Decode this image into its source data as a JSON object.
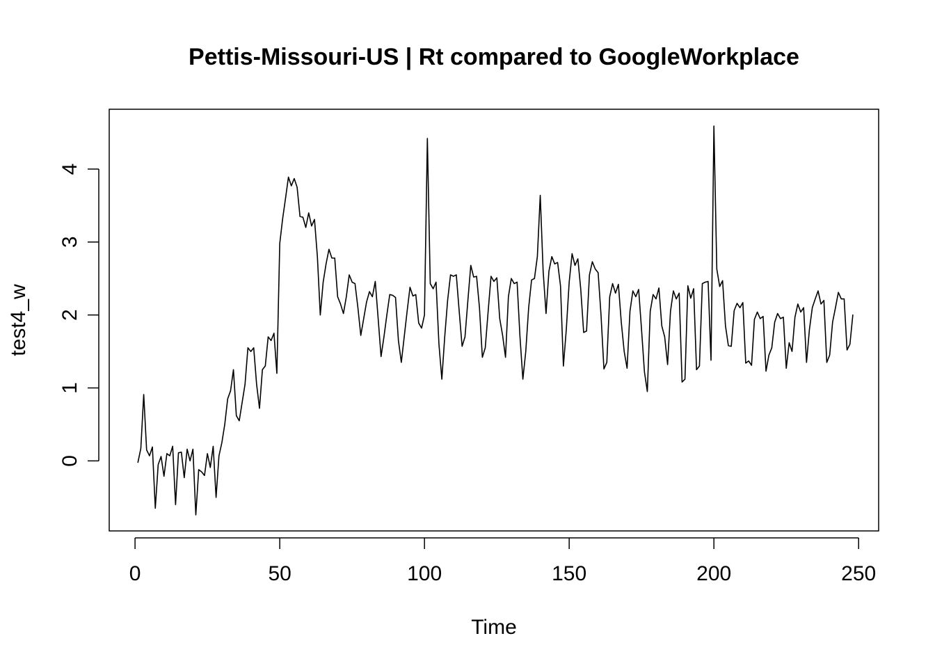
{
  "chart_data": {
    "type": "line",
    "title": "Pettis-Missouri-US | Rt compared to GoogleWorkplace",
    "xlabel": "Time",
    "ylabel": "test4_w",
    "xlim": [
      -8.92,
      256.92
    ],
    "ylim": [
      -0.96,
      4.82
    ],
    "xticks": [
      0,
      50,
      100,
      150,
      200,
      250
    ],
    "yticks": [
      0,
      1,
      2,
      3,
      4
    ],
    "grid": false,
    "legend": "none",
    "series": [
      {
        "color": "#000000",
        "x": [
          1,
          2,
          3,
          4,
          5,
          6,
          7,
          8,
          9,
          10,
          11,
          12,
          13,
          14,
          15,
          16,
          17,
          18,
          19,
          20,
          21,
          22,
          23,
          24,
          25,
          26,
          27,
          28,
          29,
          30,
          31,
          32,
          33,
          34,
          35,
          36,
          37,
          38,
          39,
          40,
          41,
          42,
          43,
          44,
          45,
          46,
          47,
          48,
          49,
          50,
          51,
          52,
          53,
          54,
          55,
          56,
          57,
          58,
          59,
          60,
          61,
          62,
          63,
          64,
          65,
          66,
          67,
          68,
          69,
          70,
          71,
          72,
          73,
          74,
          75,
          76,
          77,
          78,
          79,
          80,
          81,
          82,
          83,
          84,
          85,
          86,
          87,
          88,
          89,
          90,
          91,
          92,
          93,
          94,
          95,
          96,
          97,
          98,
          99,
          100,
          101,
          102,
          103,
          104,
          105,
          106,
          107,
          108,
          109,
          110,
          111,
          112,
          113,
          114,
          115,
          116,
          117,
          118,
          119,
          120,
          121,
          122,
          123,
          124,
          125,
          126,
          127,
          128,
          129,
          130,
          131,
          132,
          133,
          134,
          135,
          136,
          137,
          138,
          139,
          140,
          141,
          142,
          143,
          144,
          145,
          146,
          147,
          148,
          149,
          150,
          151,
          152,
          153,
          154,
          155,
          156,
          157,
          158,
          159,
          160,
          161,
          162,
          163,
          164,
          165,
          166,
          167,
          168,
          169,
          170,
          171,
          172,
          173,
          174,
          175,
          176,
          177,
          178,
          179,
          180,
          181,
          182,
          183,
          184,
          185,
          186,
          187,
          188,
          189,
          190,
          191,
          192,
          193,
          194,
          195,
          196,
          197,
          198,
          199,
          200,
          201,
          202,
          203,
          204,
          205,
          206,
          207,
          208,
          209,
          210,
          211,
          212,
          213,
          214,
          215,
          216,
          217,
          218,
          219,
          220,
          221,
          222,
          223,
          224,
          225,
          226,
          227,
          228,
          229,
          230,
          231,
          232,
          233,
          234,
          235,
          236,
          237,
          238,
          239,
          240,
          241,
          242,
          243,
          244,
          245,
          246,
          247,
          248
        ],
        "y": [
          -0.02,
          0.17,
          0.91,
          0.15,
          0.07,
          0.19,
          -0.65,
          -0.05,
          0.06,
          -0.21,
          0.1,
          0.07,
          0.2,
          -0.6,
          0.11,
          0.12,
          -0.23,
          0.16,
          0.0,
          0.16,
          -0.74,
          -0.12,
          -0.15,
          -0.2,
          0.1,
          -0.09,
          0.2,
          -0.5,
          0.07,
          0.25,
          0.5,
          0.85,
          0.96,
          1.25,
          0.62,
          0.55,
          0.8,
          1.05,
          1.55,
          1.5,
          1.55,
          1.05,
          0.72,
          1.25,
          1.3,
          1.7,
          1.65,
          1.75,
          1.2,
          2.98,
          3.32,
          3.6,
          3.89,
          3.77,
          3.87,
          3.75,
          3.35,
          3.34,
          3.2,
          3.4,
          3.22,
          3.31,
          2.8,
          2.0,
          2.45,
          2.7,
          2.9,
          2.78,
          2.78,
          2.25,
          2.15,
          2.02,
          2.25,
          2.55,
          2.45,
          2.43,
          2.1,
          1.72,
          1.95,
          2.18,
          2.32,
          2.25,
          2.46,
          1.95,
          1.43,
          1.7,
          2.0,
          2.28,
          2.27,
          2.24,
          1.65,
          1.35,
          1.7,
          2.05,
          2.38,
          2.26,
          2.28,
          1.89,
          1.82,
          2.0,
          4.42,
          2.43,
          2.36,
          2.45,
          1.6,
          1.12,
          1.7,
          2.2,
          2.55,
          2.53,
          2.55,
          2.05,
          1.57,
          1.7,
          2.2,
          2.68,
          2.52,
          2.53,
          2.1,
          1.42,
          1.55,
          2.05,
          2.53,
          2.46,
          2.51,
          1.95,
          1.72,
          1.42,
          2.25,
          2.5,
          2.43,
          2.45,
          1.7,
          1.12,
          1.5,
          2.1,
          2.48,
          2.5,
          2.8,
          3.64,
          2.6,
          2.02,
          2.6,
          2.8,
          2.7,
          2.72,
          2.4,
          1.3,
          1.8,
          2.45,
          2.84,
          2.68,
          2.77,
          2.35,
          1.76,
          1.78,
          2.55,
          2.73,
          2.63,
          2.58,
          2.0,
          1.26,
          1.35,
          2.25,
          2.43,
          2.3,
          2.42,
          1.9,
          1.5,
          1.27,
          2.05,
          2.33,
          2.25,
          2.35,
          1.8,
          1.22,
          0.95,
          2.05,
          2.28,
          2.22,
          2.37,
          1.85,
          1.7,
          1.32,
          2.05,
          2.33,
          2.22,
          2.3,
          1.08,
          1.12,
          2.4,
          2.23,
          2.36,
          1.25,
          1.3,
          2.43,
          2.45,
          2.46,
          1.38,
          4.59,
          2.63,
          2.39,
          2.47,
          1.85,
          1.58,
          1.57,
          2.06,
          2.16,
          2.1,
          2.17,
          1.34,
          1.37,
          1.31,
          1.94,
          2.04,
          1.95,
          1.98,
          1.23,
          1.45,
          1.55,
          1.9,
          2.02,
          1.95,
          1.97,
          1.27,
          1.62,
          1.5,
          1.97,
          2.15,
          2.04,
          2.1,
          1.35,
          1.8,
          2.1,
          2.22,
          2.33,
          2.15,
          2.2,
          1.35,
          1.45,
          1.9,
          2.1,
          2.31,
          2.22,
          2.22,
          1.52,
          1.6,
          2.0
        ]
      }
    ]
  }
}
